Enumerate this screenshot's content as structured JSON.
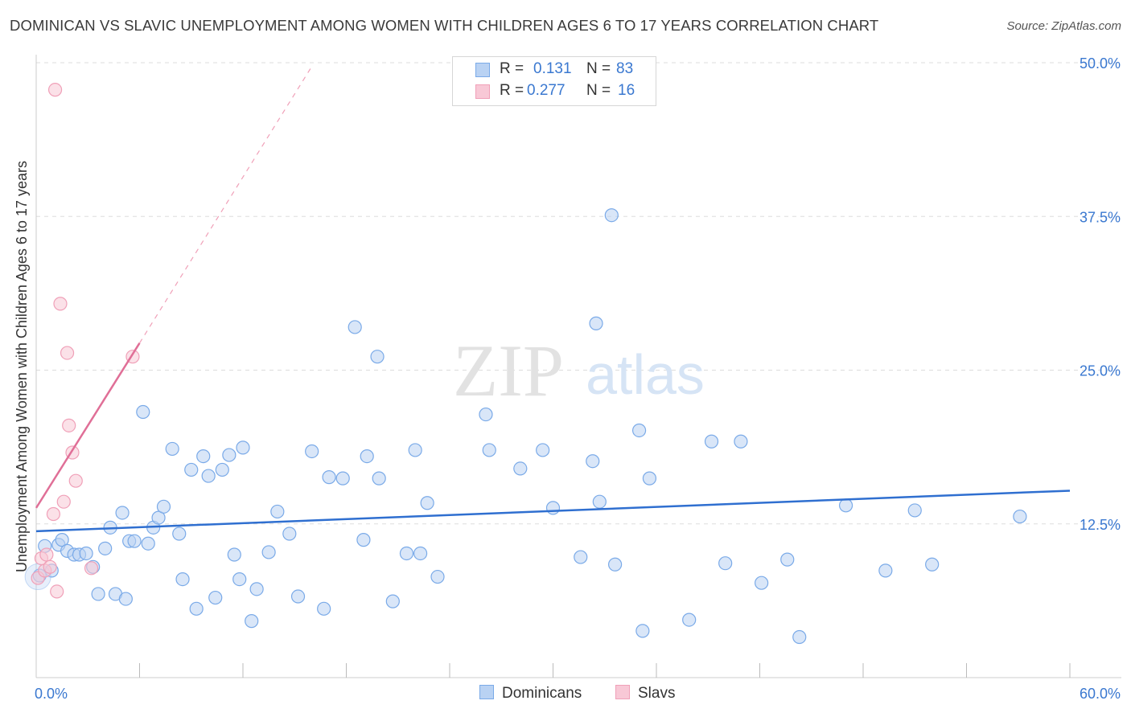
{
  "header": {
    "title": "DOMINICAN VS SLAVIC UNEMPLOYMENT AMONG WOMEN WITH CHILDREN AGES 6 TO 17 YEARS CORRELATION CHART",
    "source": "Source: ZipAtlas.com"
  },
  "watermark": {
    "zip": "ZIP",
    "atlas": "atlas"
  },
  "legend": {
    "r_label": "R =",
    "n_label": "N =",
    "rows": [
      {
        "series": "Dominicans",
        "r": "0.131",
        "n": "83",
        "color": "#7aaae8"
      },
      {
        "series": "Slavs",
        "r": "0.277",
        "n": "16",
        "color": "#f0a0b8"
      }
    ]
  },
  "bottom_legend": {
    "dominicans": "Dominicans",
    "slavs": "Slavs"
  },
  "colors": {
    "blue_fill": "#b9d2f3",
    "blue_stroke": "#7aaae8",
    "blue_line": "#2f6fd0",
    "pink_fill": "#f8c8d6",
    "pink_stroke": "#f0a0b8",
    "pink_line": "#e06f97",
    "tick_label": "#3a78d0",
    "grid": "#dddddd"
  },
  "chart_data": {
    "type": "scatter",
    "title": "DOMINICAN VS SLAVIC UNEMPLOYMENT AMONG WOMEN WITH CHILDREN AGES 6 TO 17 YEARS CORRELATION CHART",
    "xlabel": "",
    "ylabel": "Unemployment Among Women with Children Ages 6 to 17 years",
    "xlim": [
      0,
      60
    ],
    "ylim": [
      0,
      50
    ],
    "x_tick_labels": [
      {
        "value": 0,
        "label": "0.0%"
      },
      {
        "value": 60,
        "label": "60.0%"
      }
    ],
    "y_tick_labels": [
      {
        "value": 12.5,
        "label": "12.5%"
      },
      {
        "value": 25,
        "label": "25.0%"
      },
      {
        "value": 37.5,
        "label": "37.5%"
      },
      {
        "value": 50,
        "label": "50.0%"
      }
    ],
    "grid": true,
    "legend_position": "top-center",
    "series": [
      {
        "name": "Dominicans",
        "r": 0.131,
        "n": 83,
        "trend": {
          "x": [
            0,
            60
          ],
          "y": [
            11.9,
            15.2
          ]
        },
        "points": [
          [
            0.2,
            8.3
          ],
          [
            0.5,
            10.7
          ],
          [
            0.9,
            8.7
          ],
          [
            1.3,
            10.8
          ],
          [
            1.5,
            11.2
          ],
          [
            1.8,
            10.3
          ],
          [
            2.2,
            10.0
          ],
          [
            2.5,
            10.0
          ],
          [
            2.9,
            10.1
          ],
          [
            3.3,
            9.0
          ],
          [
            3.6,
            6.8
          ],
          [
            4.0,
            10.5
          ],
          [
            4.3,
            12.2
          ],
          [
            4.6,
            6.8
          ],
          [
            5.0,
            13.4
          ],
          [
            5.2,
            6.4
          ],
          [
            5.4,
            11.1
          ],
          [
            5.7,
            11.1
          ],
          [
            6.2,
            21.6
          ],
          [
            6.5,
            10.9
          ],
          [
            6.8,
            12.2
          ],
          [
            7.1,
            13.0
          ],
          [
            7.4,
            13.9
          ],
          [
            7.9,
            18.6
          ],
          [
            8.3,
            11.7
          ],
          [
            8.5,
            8.0
          ],
          [
            9.0,
            16.9
          ],
          [
            9.3,
            5.6
          ],
          [
            9.7,
            18.0
          ],
          [
            10.0,
            16.4
          ],
          [
            10.4,
            6.5
          ],
          [
            10.8,
            16.9
          ],
          [
            11.2,
            18.1
          ],
          [
            11.5,
            10.0
          ],
          [
            11.8,
            8.0
          ],
          [
            12.0,
            18.7
          ],
          [
            12.5,
            4.6
          ],
          [
            12.8,
            7.2
          ],
          [
            13.5,
            10.2
          ],
          [
            14.0,
            13.5
          ],
          [
            14.7,
            11.7
          ],
          [
            15.2,
            6.6
          ],
          [
            16.0,
            18.4
          ],
          [
            16.7,
            5.6
          ],
          [
            17.0,
            16.3
          ],
          [
            17.8,
            16.2
          ],
          [
            18.5,
            28.5
          ],
          [
            19.0,
            11.2
          ],
          [
            19.2,
            18.0
          ],
          [
            19.9,
            16.2
          ],
          [
            19.8,
            26.1
          ],
          [
            20.7,
            6.2
          ],
          [
            21.5,
            10.1
          ],
          [
            22.0,
            18.5
          ],
          [
            22.3,
            10.1
          ],
          [
            22.7,
            14.2
          ],
          [
            23.3,
            8.2
          ],
          [
            26.1,
            21.4
          ],
          [
            26.3,
            18.5
          ],
          [
            28.1,
            17.0
          ],
          [
            29.4,
            18.5
          ],
          [
            30.0,
            13.8
          ],
          [
            31.6,
            9.8
          ],
          [
            32.5,
            28.8
          ],
          [
            32.3,
            17.6
          ],
          [
            32.7,
            14.3
          ],
          [
            33.4,
            37.6
          ],
          [
            33.6,
            9.2
          ],
          [
            35.0,
            20.1
          ],
          [
            35.2,
            3.8
          ],
          [
            35.6,
            16.2
          ],
          [
            37.9,
            4.7
          ],
          [
            39.2,
            19.2
          ],
          [
            40.0,
            9.3
          ],
          [
            40.9,
            19.2
          ],
          [
            42.1,
            7.7
          ],
          [
            43.6,
            9.6
          ],
          [
            44.3,
            3.3
          ],
          [
            47.0,
            14.0
          ],
          [
            49.3,
            8.7
          ],
          [
            51.0,
            13.6
          ],
          [
            52.0,
            9.2
          ],
          [
            57.1,
            13.1
          ]
        ]
      },
      {
        "name": "Slavs",
        "r": 0.277,
        "n": 16,
        "trend": {
          "x": [
            0,
            6.0
          ],
          "y": [
            13.8,
            27.2
          ],
          "dashed_extension": {
            "x": [
              6.0,
              16.0
            ],
            "y": [
              27.2,
              49.7
            ]
          }
        },
        "points": [
          [
            0.1,
            8.1
          ],
          [
            0.3,
            9.7
          ],
          [
            0.5,
            8.7
          ],
          [
            0.6,
            10.0
          ],
          [
            0.8,
            9.0
          ],
          [
            1.0,
            13.3
          ],
          [
            1.1,
            47.8
          ],
          [
            1.2,
            7.0
          ],
          [
            1.4,
            30.4
          ],
          [
            1.6,
            14.3
          ],
          [
            1.8,
            26.4
          ],
          [
            1.9,
            20.5
          ],
          [
            2.1,
            18.3
          ],
          [
            2.3,
            16.0
          ],
          [
            3.2,
            8.9
          ],
          [
            5.6,
            26.1
          ]
        ]
      }
    ]
  }
}
